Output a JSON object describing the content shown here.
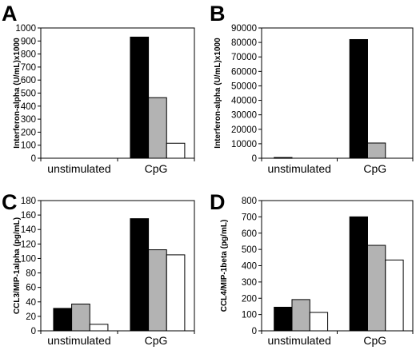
{
  "colors": {
    "bar_black": "#000000",
    "bar_gray": "#b3b3b3",
    "bar_white": "#ffffff",
    "axis": "#000000"
  },
  "chart_data": [
    {
      "panel": "A",
      "type": "bar",
      "categories": [
        "unstimulated",
        "CpG"
      ],
      "series": [
        {
          "values": [
            0,
            930
          ]
        },
        {
          "values": [
            0,
            465
          ]
        },
        {
          "values": [
            0,
            115
          ]
        }
      ],
      "ylabel": "Interferon-alpha (U/mL)x1000",
      "ylim": [
        0,
        1000
      ],
      "yticks": [
        0,
        100,
        200,
        300,
        400,
        500,
        600,
        700,
        800,
        900,
        1000
      ],
      "grid": false
    },
    {
      "panel": "B",
      "type": "bar",
      "categories": [
        "unstimulated",
        "CpG"
      ],
      "series": [
        {
          "values": [
            500,
            82000
          ]
        },
        {
          "values": [
            0,
            10500
          ]
        },
        {
          "values": [
            0,
            0
          ]
        }
      ],
      "ylabel": "Interferon-alpha (U/mL)x1000",
      "ylim": [
        0,
        90000
      ],
      "yticks": [
        0,
        10000,
        20000,
        30000,
        40000,
        50000,
        60000,
        70000,
        80000,
        90000
      ],
      "grid": false
    },
    {
      "panel": "C",
      "type": "bar",
      "categories": [
        "unstimulated",
        "CpG"
      ],
      "series": [
        {
          "values": [
            31,
            155
          ]
        },
        {
          "values": [
            37,
            112
          ]
        },
        {
          "values": [
            9,
            105
          ]
        }
      ],
      "ylabel": "CCL3/MIP-1alpha (pg/mL)",
      "ylim": [
        0,
        180
      ],
      "yticks": [
        0,
        20,
        40,
        60,
        80,
        100,
        120,
        140,
        160,
        180
      ],
      "grid": false
    },
    {
      "panel": "D",
      "type": "bar",
      "categories": [
        "unstimulated",
        "CpG"
      ],
      "series": [
        {
          "values": [
            145,
            700
          ]
        },
        {
          "values": [
            192,
            525
          ]
        },
        {
          "values": [
            113,
            435
          ]
        }
      ],
      "ylabel": "CCL4/MIP-1beta (pg/mL)",
      "ylim": [
        0,
        800
      ],
      "yticks": [
        0,
        100,
        200,
        300,
        400,
        500,
        600,
        700,
        800
      ],
      "grid": false
    }
  ]
}
